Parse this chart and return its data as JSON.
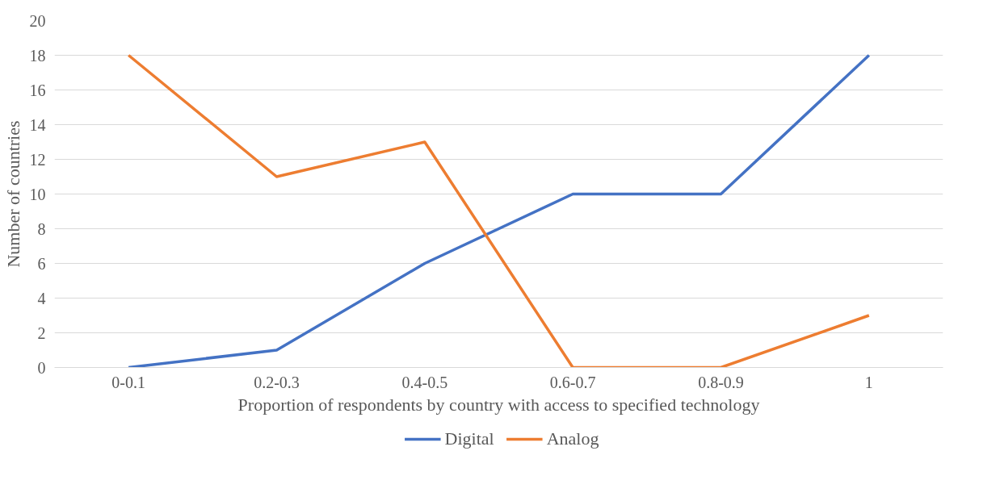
{
  "chart_data": {
    "type": "line",
    "xlabel": "Proportion of respondents by country with access to specified technology",
    "ylabel": "Number of countries",
    "categories": [
      "0-0.1",
      "0.2-0.3",
      "0.4-0.5",
      "0.6-0.7",
      "0.8-0.9",
      "1"
    ],
    "series": [
      {
        "name": "Digital",
        "color": "#4472c4",
        "values": [
          0,
          1,
          6,
          10,
          10,
          18
        ]
      },
      {
        "name": "Analog",
        "color": "#ed7d31",
        "values": [
          18,
          11,
          13,
          0,
          0,
          3
        ]
      }
    ],
    "ylim": [
      0,
      20
    ],
    "yticks": [
      0,
      2,
      4,
      6,
      8,
      10,
      12,
      14,
      16,
      18,
      20
    ],
    "grid": "y",
    "legend": "bottom",
    "marker": "none",
    "line_style": "solid"
  }
}
